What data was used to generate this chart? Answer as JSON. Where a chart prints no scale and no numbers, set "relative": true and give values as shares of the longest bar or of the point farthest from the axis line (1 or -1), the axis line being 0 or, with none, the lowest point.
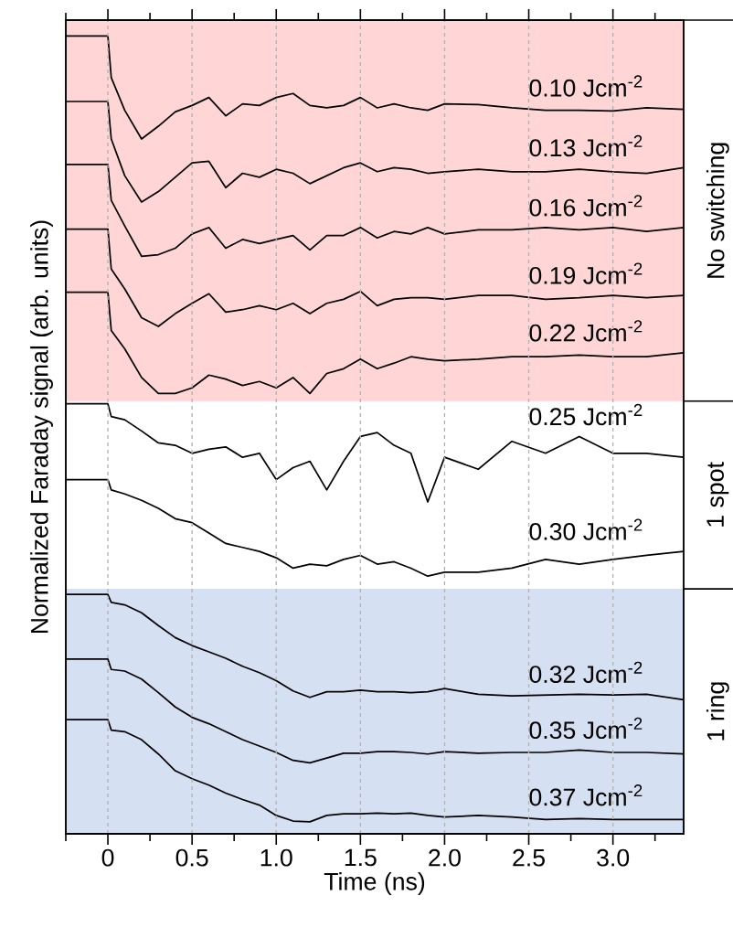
{
  "chart_data": {
    "type": "line",
    "relative": true,
    "xlabel": "Time (ns)",
    "ylabel": "Normalized Faraday signal (arb. units)",
    "xlim": [
      -0.25,
      3.42
    ],
    "xticks": [
      {
        "value": -0.25,
        "label": null
      },
      0,
      {
        "value": 0.25,
        "label": null
      },
      0.5,
      {
        "value": 0.75,
        "label": null
      },
      {
        "value": 1,
        "label": "1.0"
      },
      {
        "value": 1.25,
        "label": null
      },
      1.5,
      {
        "value": 1.75,
        "label": null
      },
      {
        "value": 2,
        "label": "2.0"
      },
      {
        "value": 2.25,
        "label": null
      },
      2.5,
      {
        "value": 2.75,
        "label": null
      },
      {
        "value": 3,
        "label": "3.0"
      },
      {
        "value": 3.25,
        "label": null
      }
    ],
    "grid": "x",
    "annotations": [
      "1 spot"
    ],
    "marker": "none",
    "line_style": "solid",
    "x": [
      -0.25,
      0,
      0.02,
      0.1,
      0.2,
      0.3,
      0.4,
      0.5,
      0.6,
      0.7,
      0.8,
      0.9,
      1.0,
      1.1,
      1.2,
      1.3,
      1.4,
      1.5,
      1.6,
      1.7,
      1.8,
      1.9,
      2.0,
      2.2,
      2.4,
      2.6,
      2.8,
      3.0,
      3.2,
      3.42
    ],
    "series": [
      {
        "name": "0.10 Jcm$^{-2}$",
        "color": "#000000",
        "values": [
          1.0,
          1.0,
          0.948,
          0.907,
          0.871,
          0.887,
          0.905,
          0.913,
          0.923,
          0.9,
          0.915,
          0.913,
          0.923,
          0.928,
          0.913,
          0.91,
          0.913,
          0.923,
          0.91,
          0.915,
          0.91,
          0.907,
          0.915,
          0.914,
          0.91,
          0.907,
          0.907,
          0.906,
          0.91,
          0.908
        ]
      },
      {
        "name": "0.13 Jcm$^{-2}$",
        "color": "#000000",
        "values": [
          0.918,
          0.918,
          0.871,
          0.825,
          0.792,
          0.805,
          0.823,
          0.841,
          0.843,
          0.81,
          0.828,
          0.823,
          0.833,
          0.828,
          0.815,
          0.825,
          0.835,
          0.841,
          0.83,
          0.835,
          0.833,
          0.828,
          0.83,
          0.833,
          0.83,
          0.83,
          0.833,
          0.83,
          0.828,
          0.835
        ]
      },
      {
        "name": "0.16 Jcm$^{-2}$",
        "color": "#000000",
        "values": [
          0.839,
          0.839,
          0.794,
          0.762,
          0.724,
          0.726,
          0.734,
          0.752,
          0.76,
          0.734,
          0.745,
          0.74,
          0.745,
          0.75,
          0.732,
          0.75,
          0.75,
          0.76,
          0.747,
          0.755,
          0.752,
          0.76,
          0.752,
          0.757,
          0.757,
          0.76,
          0.757,
          0.76,
          0.755,
          0.76
        ]
      },
      {
        "name": "0.19 Jcm$^{-2}$",
        "color": "#000000",
        "values": [
          0.758,
          0.758,
          0.708,
          0.683,
          0.647,
          0.636,
          0.652,
          0.665,
          0.677,
          0.654,
          0.657,
          0.662,
          0.657,
          0.665,
          0.652,
          0.665,
          0.67,
          0.68,
          0.662,
          0.67,
          0.672,
          0.672,
          0.67,
          0.675,
          0.675,
          0.67,
          0.672,
          0.675,
          0.672,
          0.675
        ]
      },
      {
        "name": "0.22 Jcm$^{-2}$",
        "color": "#000000",
        "values": [
          0.679,
          0.679,
          0.631,
          0.608,
          0.572,
          0.552,
          0.552,
          0.559,
          0.575,
          0.57,
          0.562,
          0.567,
          0.559,
          0.572,
          0.552,
          0.577,
          0.583,
          0.595,
          0.583,
          0.59,
          0.598,
          0.595,
          0.593,
          0.595,
          0.598,
          0.598,
          0.6,
          0.598,
          0.598,
          0.603
        ]
      },
      {
        "name": "0.25 Jcm$^{-2}$",
        "color": "#000000",
        "values": [
          0.539,
          0.539,
          0.523,
          0.519,
          0.505,
          0.49,
          0.487,
          0.477,
          0.482,
          0.485,
          0.472,
          0.477,
          0.444,
          0.459,
          0.467,
          0.431,
          0.467,
          0.498,
          0.503,
          0.487,
          0.477,
          0.416,
          0.472,
          0.457,
          0.492,
          0.477,
          0.498,
          0.477,
          0.477,
          0.472
        ]
      },
      {
        "name": "0.30 Jcm$^{-2}$",
        "color": "#000000",
        "values": [
          0.444,
          0.444,
          0.431,
          0.426,
          0.418,
          0.408,
          0.395,
          0.39,
          0.377,
          0.364,
          0.359,
          0.354,
          0.346,
          0.333,
          0.338,
          0.336,
          0.344,
          0.349,
          0.338,
          0.341,
          0.333,
          0.323,
          0.328,
          0.328,
          0.333,
          0.344,
          0.338,
          0.344,
          0.349,
          0.354
        ]
      },
      {
        "name": "0.32 Jcm$^{-2}$",
        "color": "#000000",
        "values": [
          0.3,
          0.3,
          0.29,
          0.287,
          0.277,
          0.261,
          0.246,
          0.236,
          0.228,
          0.22,
          0.21,
          0.202,
          0.192,
          0.179,
          0.171,
          0.178,
          0.178,
          0.18,
          0.178,
          0.178,
          0.177,
          0.178,
          0.182,
          0.175,
          0.173,
          0.174,
          0.175,
          0.174,
          0.175,
          0.168
        ]
      },
      {
        "name": "0.35 Jcm$^{-2}$",
        "color": "#000000",
        "values": [
          0.219,
          0.219,
          0.206,
          0.204,
          0.194,
          0.177,
          0.159,
          0.146,
          0.138,
          0.128,
          0.118,
          0.11,
          0.102,
          0.092,
          0.089,
          0.095,
          0.101,
          0.101,
          0.103,
          0.103,
          0.102,
          0.1,
          0.103,
          0.101,
          0.102,
          0.102,
          0.105,
          0.102,
          0.102,
          0.1
        ]
      },
      {
        "name": "0.37 Jcm$^{-2}$",
        "color": "#000000",
        "values": [
          0.143,
          0.143,
          0.13,
          0.128,
          0.118,
          0.1,
          0.079,
          0.069,
          0.061,
          0.051,
          0.043,
          0.036,
          0.023,
          0.016,
          0.015,
          0.023,
          0.025,
          0.025,
          0.026,
          0.025,
          0.026,
          0.023,
          0.021,
          0.023,
          0.021,
          0.018,
          0.019,
          0.018,
          0.018,
          0.018
        ]
      }
    ],
    "bands": [
      {
        "axis": "y",
        "from": 0.5425,
        "to": 1.02,
        "label": "No switching",
        "color": "#ffd5d5"
      },
      {
        "axis": "y",
        "from": 0,
        "to": 0.307,
        "label": "1 ring",
        "color": "#d5e0f2"
      }
    ]
  }
}
